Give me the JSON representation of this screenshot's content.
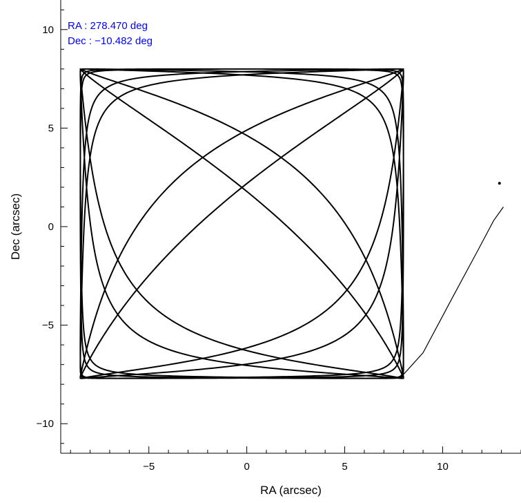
{
  "chart_data": {
    "type": "line",
    "title": "",
    "xlabel": "RA (arcsec)",
    "ylabel": "Dec (arcsec)",
    "xlim": [
      -9.5,
      14.0
    ],
    "ylim": [
      -11.5,
      11.5
    ],
    "xticks": [
      -5,
      0,
      5,
      10
    ],
    "yticks": [
      -10,
      -5,
      0,
      5,
      10
    ],
    "x_tick_labels": [
      "−5",
      "0",
      "5",
      "10"
    ],
    "y_tick_labels": [
      "−10",
      "−5",
      "0",
      "5",
      "10"
    ],
    "grid": false,
    "annotations": [
      {
        "text": "RA : 278.470 deg",
        "color": "#0000ff"
      },
      {
        "text": "Dec : −10.482 deg",
        "color": "#0000ff"
      }
    ],
    "pattern": {
      "description_of_trace": "Lissajous-type pointing scan confined to the box",
      "x_range": [
        -8.5,
        8.0
      ],
      "y_range": [
        -7.7,
        8.0
      ]
    },
    "slew_segment": {
      "x": [
        8.0,
        9.0,
        10.5,
        11.8,
        12.6,
        13.1
      ],
      "y": [
        -7.5,
        -6.4,
        -3.6,
        -1.2,
        0.3,
        1.0
      ]
    },
    "isolated_point": {
      "x": [
        12.9
      ],
      "y": [
        2.2
      ]
    },
    "line_color": "#000000"
  }
}
